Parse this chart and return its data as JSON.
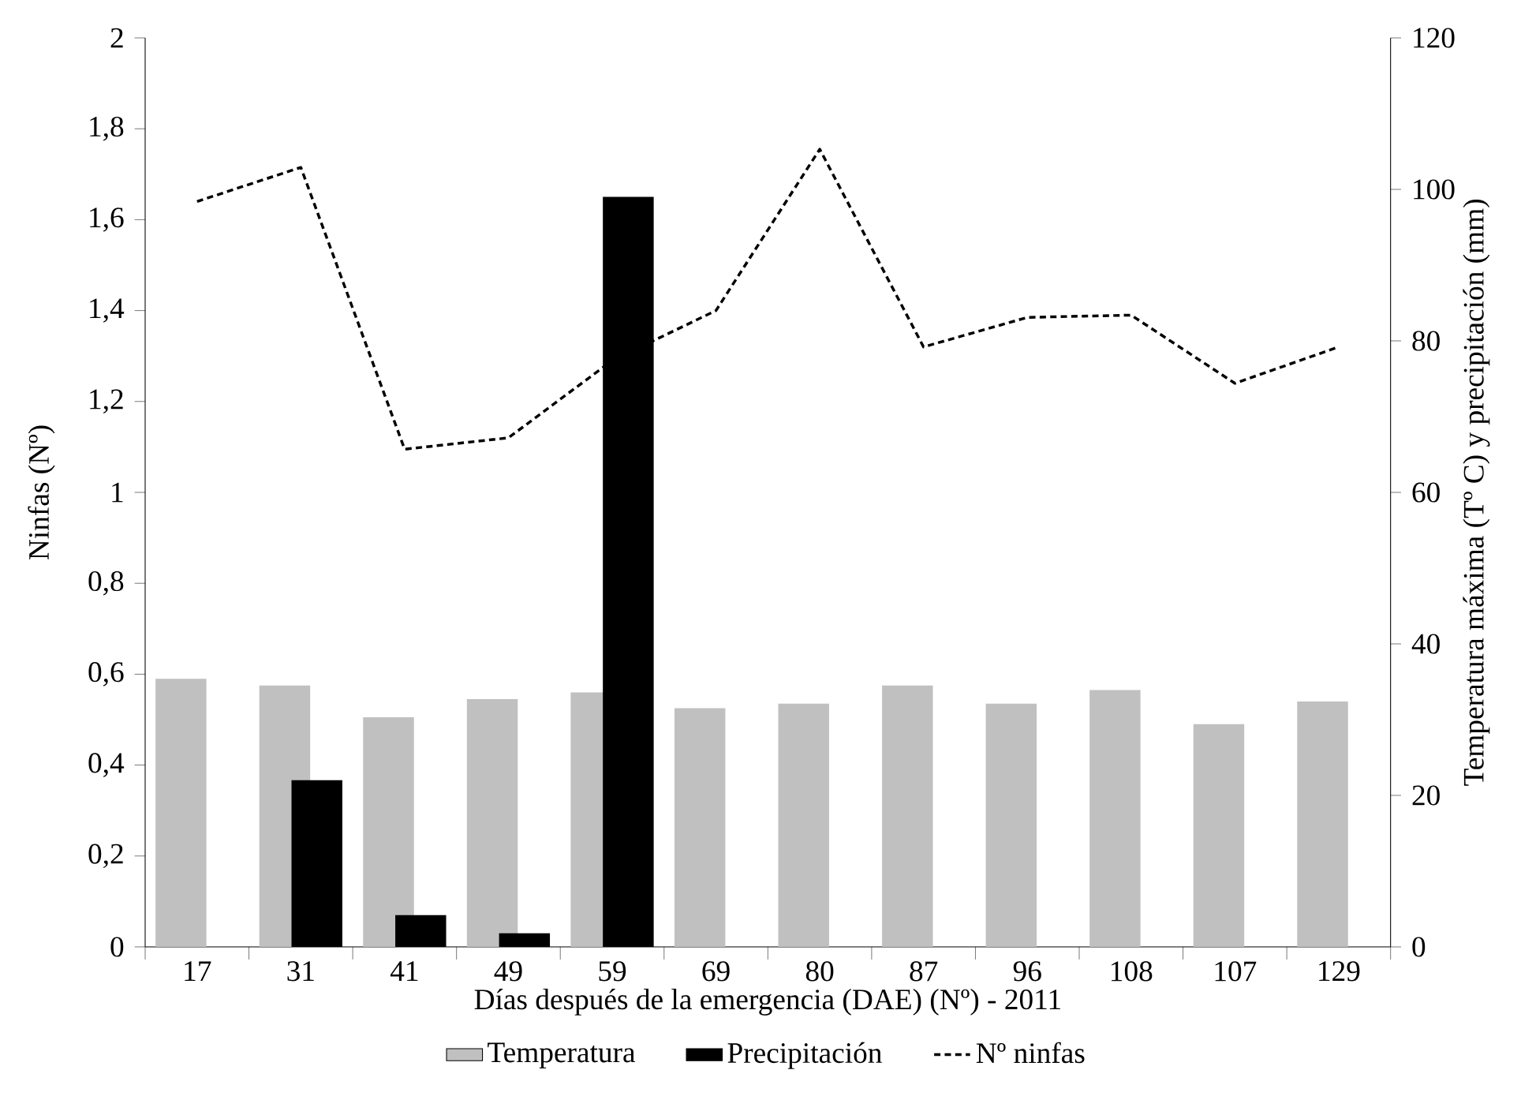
{
  "chart_data": {
    "type": "bar",
    "xlabel": "Días después de la emergencia (DAE) (Nº) - 2011",
    "ylabel": "Ninfas (Nº)",
    "y2label": "Temperatura máxima (Tº C) y precipitación (mm)",
    "categories": [
      "17",
      "31",
      "41",
      "49",
      "59",
      "69",
      "80",
      "87",
      "96",
      "108",
      "107",
      "129"
    ],
    "series": [
      {
        "name": "Temperatura",
        "axis": "y2",
        "color": "#c0c0c0",
        "values": [
          35.4,
          34.5,
          30.3,
          32.7,
          33.6,
          31.5,
          32.1,
          34.5,
          32.1,
          33.9,
          29.4,
          32.4
        ]
      },
      {
        "name": "Precipitación",
        "axis": "y2",
        "color": "#000000",
        "values": [
          0,
          22,
          4.2,
          1.8,
          99,
          0,
          0,
          0,
          0,
          0,
          0,
          0
        ]
      },
      {
        "name": "Nº ninfas",
        "type": "line",
        "axis": "y",
        "color": "#000000",
        "line_style": "dotted",
        "values": [
          1.64,
          1.715,
          1.095,
          1.12,
          1.29,
          1.4,
          1.755,
          1.32,
          1.385,
          1.39,
          1.24,
          1.32
        ]
      }
    ],
    "ylim": [
      0,
      2
    ],
    "yticks": [
      0,
      {
        "value": 0.2,
        "label": "0,2"
      },
      {
        "value": 0.4,
        "label": "0,4"
      },
      {
        "value": 0.6,
        "label": "0,6"
      },
      {
        "value": 0.8,
        "label": "0,8"
      },
      1,
      {
        "value": 1.2,
        "label": "1,2"
      },
      {
        "value": 1.4,
        "label": "1,4"
      },
      {
        "value": 1.6,
        "label": "1,6"
      },
      {
        "value": 1.8,
        "label": "1,8"
      },
      2
    ],
    "y2lim": [
      0,
      120
    ],
    "y2ticks": [
      0,
      20,
      40,
      60,
      80,
      100,
      120
    ],
    "grid": false,
    "legend": "bottom",
    "marker": "none"
  }
}
